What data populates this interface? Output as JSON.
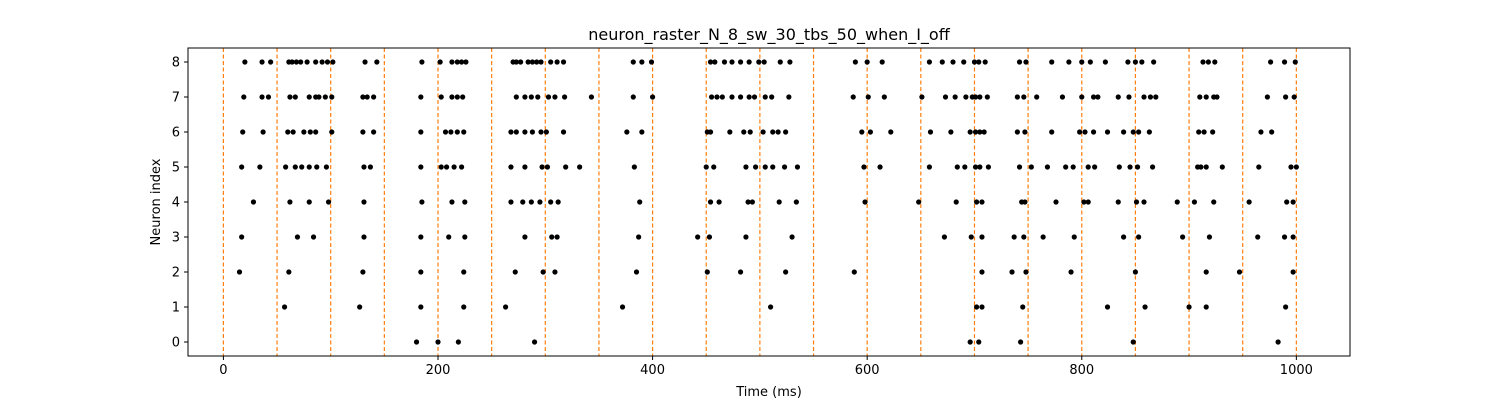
{
  "chart_data": {
    "type": "scatter",
    "title": "neuron_raster_N_8_sw_30_tbs_50_when_I_off",
    "xlabel": "Time (ms)",
    "ylabel": "Neuron index",
    "xlim": [
      -33,
      1050
    ],
    "ylim": [
      -0.4,
      8.4
    ],
    "x_ticks": [
      0,
      200,
      400,
      600,
      800,
      1000
    ],
    "y_ticks": [
      0,
      1,
      2,
      3,
      4,
      5,
      6,
      7,
      8
    ],
    "grid": false,
    "marker_color": "#000000",
    "vline_color": "#ff7f0e",
    "vlines": [
      0,
      50,
      100,
      150,
      200,
      250,
      300,
      350,
      400,
      450,
      500,
      550,
      600,
      650,
      700,
      750,
      800,
      850,
      900,
      950,
      1000
    ],
    "series": [
      {
        "neuron": 0,
        "spikes": [
          180,
          200,
          219,
          290,
          696,
          704,
          743,
          848,
          983
        ]
      },
      {
        "neuron": 1,
        "spikes": [
          57,
          127,
          184,
          224,
          263,
          372,
          510,
          702,
          707,
          745,
          824,
          859,
          900,
          916,
          990
        ]
      },
      {
        "neuron": 2,
        "spikes": [
          15,
          61,
          130,
          184,
          224,
          272,
          298,
          309,
          385,
          451,
          482,
          524,
          588,
          707,
          735,
          748,
          790,
          850,
          916,
          947,
          997
        ]
      },
      {
        "neuron": 3,
        "spikes": [
          17,
          69,
          84,
          131,
          184,
          210,
          225,
          281,
          306,
          311,
          387,
          442,
          453,
          487,
          530,
          672,
          697,
          707,
          737,
          746,
          764,
          793,
          839,
          853,
          894,
          919,
          964,
          989,
          997
        ]
      },
      {
        "neuron": 4,
        "spikes": [
          28,
          62,
          80,
          98,
          131,
          185,
          213,
          225,
          268,
          279,
          287,
          295,
          305,
          312,
          388,
          454,
          462,
          489,
          493,
          518,
          534,
          598,
          648,
          683,
          702,
          707,
          744,
          747,
          776,
          802,
          806,
          834,
          851,
          858,
          889,
          905,
          923,
          956,
          991,
          997
        ]
      },
      {
        "neuron": 5,
        "spikes": [
          17,
          34,
          58,
          67,
          73,
          80,
          87,
          96,
          131,
          137,
          184,
          203,
          208,
          215,
          222,
          268,
          281,
          297,
          302,
          319,
          332,
          383,
          450,
          457,
          487,
          496,
          505,
          512,
          523,
          535,
          597,
          612,
          658,
          684,
          691,
          701,
          705,
          713,
          742,
          753,
          768,
          785,
          792,
          806,
          812,
          835,
          845,
          852,
          866,
          908,
          911,
          916,
          931,
          965,
          995,
          1000
        ]
      },
      {
        "neuron": 6,
        "spikes": [
          18,
          37,
          60,
          65,
          75,
          81,
          86,
          101,
          130,
          140,
          184,
          207,
          212,
          218,
          224,
          268,
          273,
          281,
          288,
          296,
          301,
          317,
          376,
          390,
          451,
          454,
          472,
          485,
          491,
          503,
          512,
          517,
          524,
          595,
          603,
          622,
          659,
          678,
          696,
          701,
          705,
          709,
          740,
          747,
          772,
          798,
          803,
          811,
          824,
          839,
          848,
          853,
          863,
          909,
          914,
          922,
          967,
          977
        ]
      },
      {
        "neuron": 7,
        "spikes": [
          19,
          36,
          42,
          62,
          67,
          80,
          86,
          89,
          95,
          101,
          130,
          134,
          140,
          184,
          203,
          213,
          218,
          223,
          273,
          281,
          287,
          293,
          303,
          309,
          318,
          343,
          382,
          400,
          455,
          460,
          465,
          474,
          482,
          490,
          495,
          505,
          511,
          527,
          587,
          601,
          616,
          651,
          673,
          682,
          692,
          698,
          701,
          705,
          712,
          740,
          746,
          758,
          782,
          800,
          811,
          815,
          834,
          844,
          858,
          864,
          869,
          910,
          916,
          923,
          926,
          973,
          990,
          998
        ]
      },
      {
        "neuron": 8,
        "spikes": [
          20,
          36,
          44,
          61,
          64,
          68,
          72,
          78,
          86,
          92,
          97,
          102,
          132,
          143,
          185,
          202,
          213,
          218,
          222,
          226,
          270,
          273,
          277,
          284,
          288,
          292,
          296,
          305,
          311,
          317,
          382,
          390,
          399,
          454,
          458,
          467,
          474,
          482,
          490,
          499,
          504,
          519,
          528,
          589,
          600,
          614,
          658,
          670,
          680,
          690,
          700,
          704,
          710,
          742,
          748,
          772,
          788,
          800,
          808,
          822,
          843,
          850,
          856,
          867,
          913,
          918,
          924,
          976,
          989,
          999
        ]
      }
    ]
  }
}
